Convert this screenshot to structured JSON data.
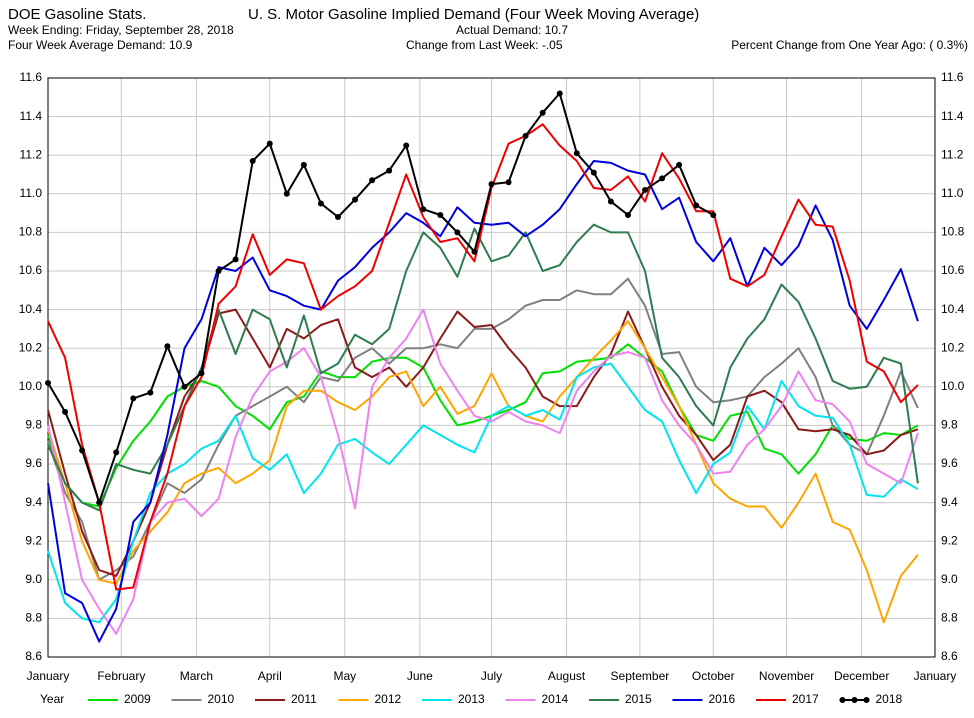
{
  "chart_data": {
    "type": "line",
    "source": "DOE Gasoline Stats.",
    "title": "U. S. Motor Gasoline Implied Demand (Four Week Moving Average)",
    "week_ending": "Week Ending:   Friday, September 28, 2018",
    "actual_demand": "Actual Demand: 10.7",
    "four_week_average": "Four Week Average Demand: 10.9",
    "change_from_last_week": "Change from Last Week: -.05",
    "percent_change": "Percent Change from One Year Ago: ( 0.3%)",
    "legend_title": "Year",
    "legend": "bottom",
    "grid": true,
    "x": [
      0,
      1,
      2,
      3,
      4,
      5,
      6,
      7,
      8,
      9,
      10,
      11,
      12,
      13,
      14,
      15,
      16,
      17,
      18,
      19,
      20,
      21,
      22,
      23,
      24,
      25,
      26,
      27,
      28,
      29,
      30,
      31,
      32,
      33,
      34,
      35,
      36,
      37,
      38,
      39,
      40,
      41,
      42,
      43,
      44,
      45,
      46,
      47,
      48,
      49,
      50,
      51
    ],
    "xlim": [
      0,
      52
    ],
    "xticks": [
      {
        "value": 0,
        "label": "January"
      },
      {
        "value": 4.3,
        "label": "February"
      },
      {
        "value": 8.7,
        "label": "March"
      },
      {
        "value": 13,
        "label": "April"
      },
      {
        "value": 17.4,
        "label": "May"
      },
      {
        "value": 21.8,
        "label": "June"
      },
      {
        "value": 26,
        "label": "July"
      },
      {
        "value": 30.4,
        "label": "August"
      },
      {
        "value": 34.7,
        "label": "September"
      },
      {
        "value": 39,
        "label": "October"
      },
      {
        "value": 43.3,
        "label": "November"
      },
      {
        "value": 47.7,
        "label": "December"
      },
      {
        "value": 52,
        "label": "January"
      }
    ],
    "ylim": [
      8.6,
      11.6
    ],
    "yticks": [
      8.6,
      8.8,
      {
        "value": 9,
        "label": "9.0"
      },
      9.2,
      9.4,
      9.6,
      9.8,
      {
        "value": 10,
        "label": "10.0"
      },
      10.2,
      10.4,
      10.6,
      10.8,
      {
        "value": 11,
        "label": "11.0"
      },
      11.2,
      11.4,
      11.6
    ],
    "series": [
      {
        "name": "2009",
        "color": "#00e000",
        "values": [
          9.75,
          9.5,
          9.4,
          9.38,
          9.58,
          9.72,
          9.82,
          9.95,
          10.0,
          10.03,
          10.0,
          9.9,
          9.85,
          9.78,
          9.92,
          9.95,
          10.08,
          10.05,
          10.05,
          10.13,
          10.15,
          10.15,
          10.1,
          9.93,
          9.8,
          9.82,
          9.85,
          9.88,
          9.92,
          10.07,
          10.08,
          10.13,
          10.14,
          10.15,
          10.22,
          10.15,
          10.08,
          9.9,
          9.75,
          9.72,
          9.85,
          9.87,
          9.68,
          9.65,
          9.55,
          9.65,
          9.8,
          9.73,
          9.72,
          9.76,
          9.75,
          9.8
        ]
      },
      {
        "name": "2010",
        "color": "#808080",
        "values": [
          9.72,
          9.45,
          9.3,
          9.0,
          9.05,
          9.12,
          9.3,
          9.5,
          9.45,
          9.52,
          9.7,
          9.85,
          9.9,
          9.95,
          10.0,
          9.92,
          10.05,
          10.03,
          10.15,
          10.2,
          10.12,
          10.2,
          10.2,
          10.22,
          10.2,
          10.3,
          10.3,
          10.35,
          10.42,
          10.45,
          10.45,
          10.5,
          10.48,
          10.48,
          10.56,
          10.42,
          10.17,
          10.18,
          10.0,
          9.92,
          9.93,
          9.95,
          10.05,
          10.12,
          10.2,
          10.05,
          9.8,
          9.7,
          9.65,
          9.85,
          10.08,
          9.89
        ]
      },
      {
        "name": "2011",
        "color": "#8b1a1a",
        "values": [
          9.88,
          9.55,
          9.25,
          9.05,
          9.02,
          9.2,
          9.4,
          9.7,
          9.95,
          10.08,
          10.38,
          10.4,
          10.25,
          10.1,
          10.3,
          10.25,
          10.32,
          10.35,
          10.1,
          10.05,
          10.1,
          10.0,
          10.1,
          10.25,
          10.39,
          10.31,
          10.32,
          10.2,
          10.1,
          9.95,
          9.9,
          9.9,
          10.05,
          10.17,
          10.39,
          10.2,
          10.0,
          9.85,
          9.75,
          9.62,
          9.7,
          9.95,
          9.98,
          9.92,
          9.78,
          9.77,
          9.78,
          9.75,
          9.65,
          9.67,
          9.75,
          9.78
        ]
      },
      {
        "name": "2012",
        "color": "#ffa500",
        "values": [
          9.78,
          9.5,
          9.2,
          9.0,
          8.98,
          9.15,
          9.25,
          9.35,
          9.5,
          9.55,
          9.58,
          9.5,
          9.55,
          9.62,
          9.9,
          9.98,
          9.98,
          9.92,
          9.88,
          9.95,
          10.05,
          10.08,
          9.9,
          10.0,
          9.86,
          9.9,
          10.07,
          9.9,
          9.85,
          9.82,
          9.95,
          10.05,
          10.15,
          10.24,
          10.34,
          10.2,
          10.05,
          9.9,
          9.7,
          9.5,
          9.42,
          9.38,
          9.38,
          9.27,
          9.4,
          9.55,
          9.3,
          9.26,
          9.05,
          8.78,
          9.02,
          9.13
        ]
      },
      {
        "name": "2013",
        "color": "#00e5ee",
        "values": [
          9.15,
          8.88,
          8.8,
          8.78,
          8.9,
          9.2,
          9.45,
          9.55,
          9.6,
          9.68,
          9.72,
          9.85,
          9.63,
          9.57,
          9.65,
          9.45,
          9.55,
          9.7,
          9.73,
          9.66,
          9.6,
          9.7,
          9.8,
          9.75,
          9.7,
          9.66,
          9.85,
          9.9,
          9.85,
          9.88,
          9.83,
          10.05,
          10.1,
          10.12,
          10.0,
          9.88,
          9.82,
          9.62,
          9.45,
          9.6,
          9.66,
          9.9,
          9.78,
          10.03,
          9.9,
          9.85,
          9.84,
          9.7,
          9.44,
          9.43,
          9.52,
          9.47
        ]
      },
      {
        "name": "2014",
        "color": "#ee82ee",
        "values": [
          9.8,
          9.4,
          9.0,
          8.85,
          8.72,
          8.9,
          9.3,
          9.4,
          9.42,
          9.33,
          9.42,
          9.74,
          9.95,
          10.08,
          10.13,
          10.2,
          10.05,
          9.75,
          9.37,
          10.0,
          10.15,
          10.25,
          10.4,
          10.12,
          9.98,
          9.85,
          9.82,
          9.87,
          9.82,
          9.8,
          9.76,
          9.98,
          10.08,
          10.16,
          10.18,
          10.15,
          9.93,
          9.8,
          9.7,
          9.55,
          9.56,
          9.7,
          9.78,
          9.9,
          10.08,
          9.93,
          9.91,
          9.82,
          9.6,
          9.55,
          9.5,
          9.76
        ]
      },
      {
        "name": "2015",
        "color": "#2e7d4f",
        "values": [
          9.7,
          9.5,
          9.4,
          9.36,
          9.6,
          9.57,
          9.55,
          9.7,
          9.9,
          10.1,
          10.4,
          10.17,
          10.4,
          10.35,
          10.1,
          10.37,
          10.07,
          10.12,
          10.27,
          10.22,
          10.3,
          10.6,
          10.8,
          10.72,
          10.57,
          10.82,
          10.65,
          10.68,
          10.8,
          10.6,
          10.63,
          10.75,
          10.84,
          10.8,
          10.8,
          10.6,
          10.15,
          10.05,
          9.9,
          9.8,
          10.1,
          10.25,
          10.35,
          10.53,
          10.44,
          10.25,
          10.03,
          9.99,
          10.0,
          10.15,
          10.12,
          9.5
        ]
      },
      {
        "name": "2016",
        "color": "#0000dd",
        "values": [
          9.5,
          8.93,
          8.88,
          8.68,
          8.85,
          9.3,
          9.4,
          9.75,
          10.2,
          10.35,
          10.62,
          10.6,
          10.67,
          10.5,
          10.47,
          10.42,
          10.4,
          10.55,
          10.62,
          10.72,
          10.8,
          10.9,
          10.85,
          10.78,
          10.93,
          10.85,
          10.84,
          10.85,
          10.78,
          10.84,
          10.92,
          11.05,
          11.17,
          11.16,
          11.12,
          11.1,
          10.92,
          10.98,
          10.75,
          10.65,
          10.77,
          10.52,
          10.72,
          10.63,
          10.73,
          10.94,
          10.76,
          10.42,
          10.3,
          10.45,
          10.61,
          10.34
        ]
      },
      {
        "name": "2017",
        "color": "#ee0000",
        "values": [
          10.34,
          10.15,
          9.7,
          9.4,
          8.95,
          8.96,
          9.3,
          9.55,
          9.9,
          10.05,
          10.43,
          10.52,
          10.79,
          10.58,
          10.66,
          10.64,
          10.4,
          10.47,
          10.52,
          10.6,
          10.85,
          11.1,
          10.88,
          10.75,
          10.77,
          10.65,
          11.03,
          11.26,
          11.3,
          11.36,
          11.25,
          11.17,
          11.03,
          11.02,
          11.09,
          10.96,
          11.21,
          11.08,
          10.91,
          10.91,
          10.56,
          10.52,
          10.58,
          10.78,
          10.97,
          10.84,
          10.83,
          10.55,
          10.13,
          10.08,
          9.92,
          10.01
        ]
      },
      {
        "name": "2018",
        "color": "#000000",
        "markers": true,
        "values": [
          10.02,
          9.87,
          9.67,
          9.4,
          9.66,
          9.94,
          9.97,
          10.21,
          10.0,
          10.07,
          10.6,
          10.66,
          11.17,
          11.26,
          11.0,
          11.15,
          10.95,
          10.88,
          10.97,
          11.07,
          11.12,
          11.25,
          10.92,
          10.89,
          10.8,
          10.7,
          11.05,
          11.06,
          11.3,
          11.42,
          11.52,
          11.21,
          11.11,
          10.96,
          10.89,
          11.02,
          11.08,
          11.15,
          10.94,
          10.89,
          null,
          null,
          null,
          null,
          null,
          null,
          null,
          null,
          null,
          null,
          null,
          null
        ]
      }
    ]
  }
}
